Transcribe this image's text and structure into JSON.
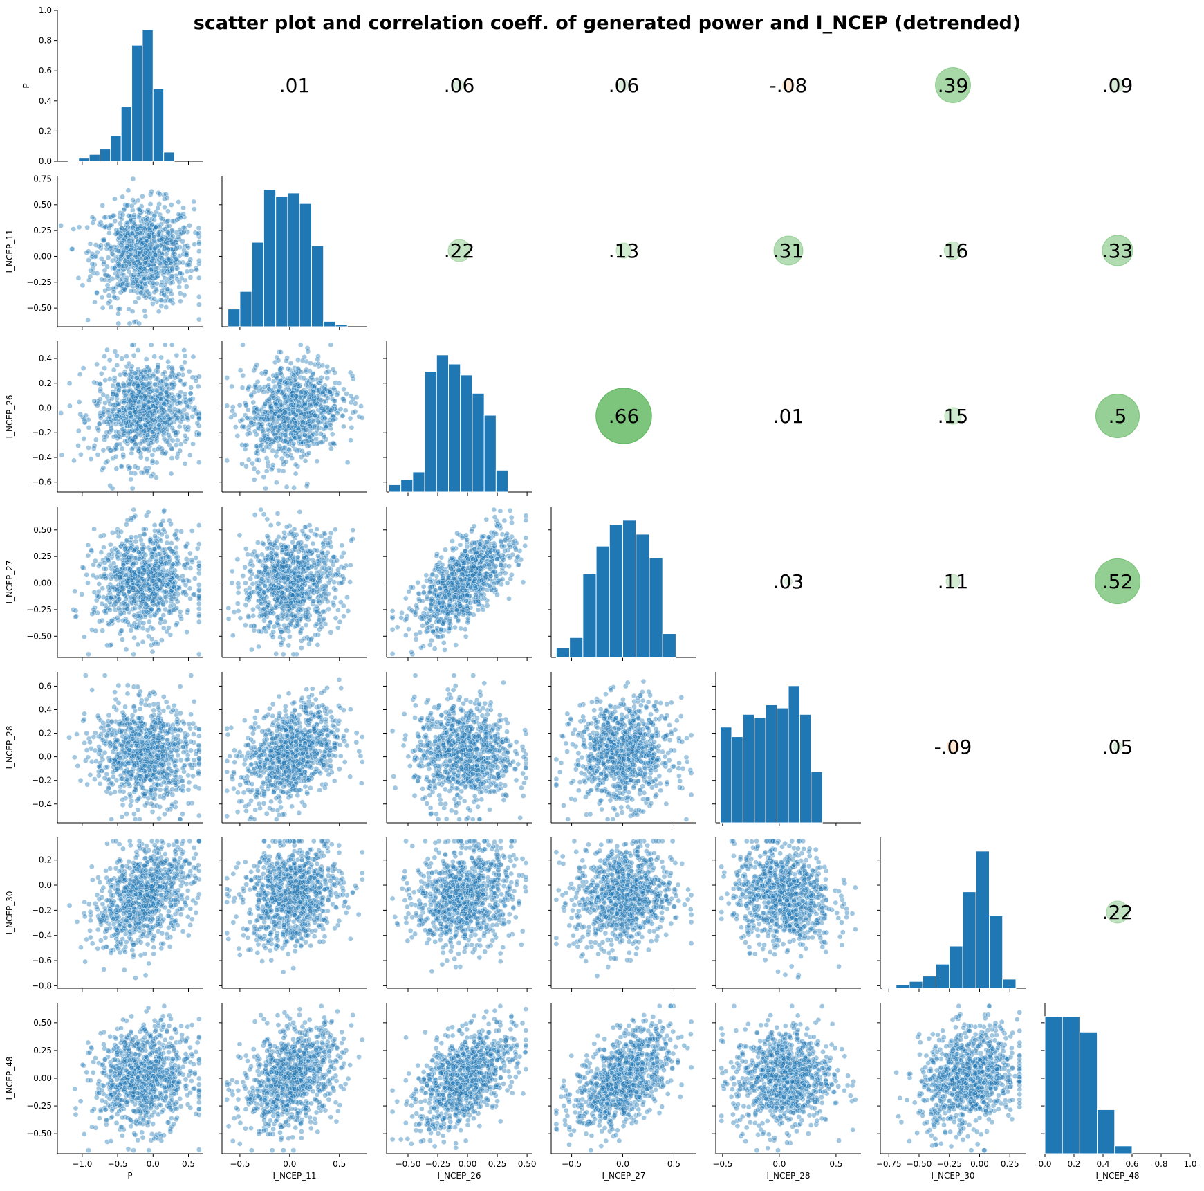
{
  "chart_data": {
    "type": "pairplot",
    "title": "scatter plot and correlation coeff. of generated power and I_NCEP (detrended)",
    "variables": [
      "P",
      "I_NCEP_11",
      "I_NCEP_26",
      "I_NCEP_27",
      "I_NCEP_28",
      "I_NCEP_30",
      "I_NCEP_48"
    ],
    "ranges": [
      [
        -1.35,
        0.7
      ],
      [
        -0.68,
        0.78
      ],
      [
        -0.68,
        0.54
      ],
      [
        -0.7,
        0.72
      ],
      [
        -0.56,
        0.72
      ],
      [
        -0.82,
        0.38
      ],
      [
        -0.68,
        0.68
      ]
    ],
    "hist_range_last": [
      0.0,
      1.0
    ],
    "ticks": [
      [
        -1.0,
        -0.5,
        0.0,
        0.5
      ],
      [
        -0.5,
        0.0,
        0.5
      ],
      [
        -0.5,
        -0.25,
        0.0,
        0.25,
        0.5
      ],
      [
        -0.5,
        0.0,
        0.5
      ],
      [
        -0.5,
        0.0,
        0.5
      ],
      [
        -0.75,
        -0.5,
        -0.25,
        0.0,
        0.25
      ],
      [
        0.0,
        0.2,
        0.4,
        0.6,
        0.8,
        1.0
      ]
    ],
    "tick_labels_x": [
      [
        "−1.0",
        "−0.5",
        "0.0",
        "0.5"
      ],
      [
        "−0.5",
        "0.0",
        "0.5"
      ],
      [
        "−0.50",
        "−0.25",
        "0.00",
        "0.25",
        "0.50"
      ],
      [
        "−0.5",
        "0.0",
        "0.5"
      ],
      [
        "−0.5",
        "0.0",
        "0.5"
      ],
      [
        "−0.75",
        "−0.50",
        "−0.25",
        "0.00",
        "0.25"
      ],
      [
        "0.0",
        "0.2",
        "0.4",
        "0.6",
        "0.8",
        "1.0"
      ]
    ],
    "y_ticks": [
      {
        "values": [
          0.0,
          0.2,
          0.4,
          0.6,
          0.8,
          1.0
        ],
        "labels": [
          "0.0",
          "0.2",
          "0.4",
          "0.6",
          "0.8",
          "1.0"
        ],
        "range": [
          0,
          1.0
        ]
      },
      {
        "values": [
          -0.5,
          -0.25,
          0.0,
          0.25,
          0.5,
          0.75
        ],
        "labels": [
          "−0.50",
          "−0.25",
          "0.00",
          "0.25",
          "0.50",
          "0.75"
        ],
        "range": [
          -0.68,
          0.78
        ]
      },
      {
        "values": [
          -0.6,
          -0.4,
          -0.2,
          0.0,
          0.2,
          0.4
        ],
        "labels": [
          "−0.6",
          "−0.4",
          "−0.2",
          "0.0",
          "0.2",
          "0.4"
        ],
        "range": [
          -0.68,
          0.54
        ]
      },
      {
        "values": [
          -0.5,
          -0.25,
          0.0,
          0.25,
          0.5
        ],
        "labels": [
          "−0.50",
          "−0.25",
          "0.00",
          "0.25",
          "0.50"
        ],
        "range": [
          -0.7,
          0.72
        ]
      },
      {
        "values": [
          -0.4,
          -0.2,
          0.0,
          0.2,
          0.4,
          0.6
        ],
        "labels": [
          "−0.4",
          "−0.2",
          "0.0",
          "0.2",
          "0.4",
          "0.6"
        ],
        "range": [
          -0.56,
          0.72
        ]
      },
      {
        "values": [
          -0.8,
          -0.6,
          -0.4,
          -0.2,
          0.0,
          0.2
        ],
        "labels": [
          "−0.8",
          "−0.6",
          "−0.4",
          "−0.2",
          "0.0",
          "0.2"
        ],
        "range": [
          -0.82,
          0.38
        ]
      },
      {
        "values": [
          -0.5,
          -0.25,
          0.0,
          0.25,
          0.5
        ],
        "labels": [
          "−0.50",
          "−0.25",
          "0.00",
          "0.25",
          "0.50"
        ],
        "range": [
          -0.68,
          0.68
        ]
      }
    ],
    "histograms": [
      {
        "edges": [
          -1.2,
          -1.05,
          -0.9,
          -0.75,
          -0.6,
          -0.45,
          -0.3,
          -0.15,
          0.0,
          0.15,
          0.3,
          0.45,
          0.6
        ],
        "heights": [
          0.005,
          0.02,
          0.045,
          0.08,
          0.17,
          0.36,
          0.77,
          0.87,
          0.48,
          0.06,
          0.0,
          0.0
        ]
      },
      {
        "edges": [
          -0.62,
          -0.5,
          -0.38,
          -0.26,
          -0.14,
          -0.02,
          0.1,
          0.22,
          0.34,
          0.46,
          0.58,
          0.7
        ],
        "heights": [
          0.1,
          0.2,
          0.48,
          0.78,
          0.74,
          0.76,
          0.7,
          0.46,
          0.03,
          0.01,
          0.0
        ]
      },
      {
        "edges": [
          -0.66,
          -0.56,
          -0.46,
          -0.36,
          -0.26,
          -0.16,
          -0.06,
          0.04,
          0.14,
          0.24,
          0.34,
          0.44,
          0.5
        ],
        "heights": [
          0.04,
          0.07,
          0.11,
          0.66,
          0.75,
          0.7,
          0.64,
          0.54,
          0.42,
          0.12,
          0.0,
          0.0
        ]
      },
      {
        "edges": [
          -0.65,
          -0.52,
          -0.39,
          -0.26,
          -0.13,
          0.0,
          0.13,
          0.26,
          0.39,
          0.52
        ],
        "heights": [
          0.05,
          0.1,
          0.42,
          0.56,
          0.67,
          0.69,
          0.62,
          0.5,
          0.12
        ]
      },
      {
        "edges": [
          -0.52,
          -0.42,
          -0.32,
          -0.22,
          -0.12,
          -0.02,
          0.08,
          0.18,
          0.28,
          0.38,
          0.48,
          0.54
        ],
        "heights": [
          0.3,
          0.27,
          0.34,
          0.33,
          0.37,
          0.36,
          0.43,
          0.34,
          0.16,
          0.0,
          0.0
        ]
      },
      {
        "edges": [
          -0.8,
          -0.69,
          -0.58,
          -0.47,
          -0.36,
          -0.25,
          -0.14,
          -0.03,
          0.08,
          0.19,
          0.3
        ],
        "heights": [
          0.005,
          0.025,
          0.045,
          0.08,
          0.16,
          0.28,
          0.64,
          0.91,
          0.48,
          0.06
        ]
      },
      {
        "edges": [
          0.0,
          0.12,
          0.24,
          0.36,
          0.48,
          0.6,
          0.72,
          0.84,
          0.96,
          1.0
        ],
        "heights": [
          0.53,
          0.53,
          0.47,
          0.17,
          0.03,
          0.0,
          0.0,
          0.0,
          0.0
        ]
      }
    ],
    "correlations": [
      {
        "row": 0,
        "col": 1,
        "label": ".01",
        "value": 0.01
      },
      {
        "row": 0,
        "col": 2,
        "label": ".06",
        "value": 0.06
      },
      {
        "row": 0,
        "col": 3,
        "label": ".06",
        "value": 0.06
      },
      {
        "row": 0,
        "col": 4,
        "label": "-.08",
        "value": -0.08
      },
      {
        "row": 0,
        "col": 5,
        "label": ".39",
        "value": 0.39
      },
      {
        "row": 0,
        "col": 6,
        "label": ".09",
        "value": 0.09
      },
      {
        "row": 1,
        "col": 2,
        "label": ".22",
        "value": 0.22
      },
      {
        "row": 1,
        "col": 3,
        "label": ".13",
        "value": 0.13
      },
      {
        "row": 1,
        "col": 4,
        "label": ".31",
        "value": 0.31
      },
      {
        "row": 1,
        "col": 5,
        "label": ".16",
        "value": 0.16
      },
      {
        "row": 1,
        "col": 6,
        "label": ".33",
        "value": 0.33
      },
      {
        "row": 2,
        "col": 3,
        "label": ".66",
        "value": 0.66
      },
      {
        "row": 2,
        "col": 4,
        "label": ".01",
        "value": 0.01
      },
      {
        "row": 2,
        "col": 5,
        "label": ".15",
        "value": 0.15
      },
      {
        "row": 2,
        "col": 6,
        "label": ".5",
        "value": 0.5
      },
      {
        "row": 3,
        "col": 4,
        "label": ".03",
        "value": 0.03
      },
      {
        "row": 3,
        "col": 5,
        "label": ".11",
        "value": 0.11
      },
      {
        "row": 3,
        "col": 6,
        "label": ".52",
        "value": 0.52
      },
      {
        "row": 4,
        "col": 5,
        "label": "-.09",
        "value": -0.09
      },
      {
        "row": 4,
        "col": 6,
        "label": ".05",
        "value": 0.05
      },
      {
        "row": 5,
        "col": 6,
        "label": ".22",
        "value": 0.22
      }
    ],
    "scatter": {
      "description": "lower triangle scatter of pairwise detrended series",
      "point_color": "#1f77b4",
      "approx_points_per_panel": 1200
    },
    "colors": {
      "bars": "#1f77b4",
      "positive_corr": "#2ca02c",
      "negative_corr": "#ff7f0e",
      "axis": "#000000"
    }
  }
}
